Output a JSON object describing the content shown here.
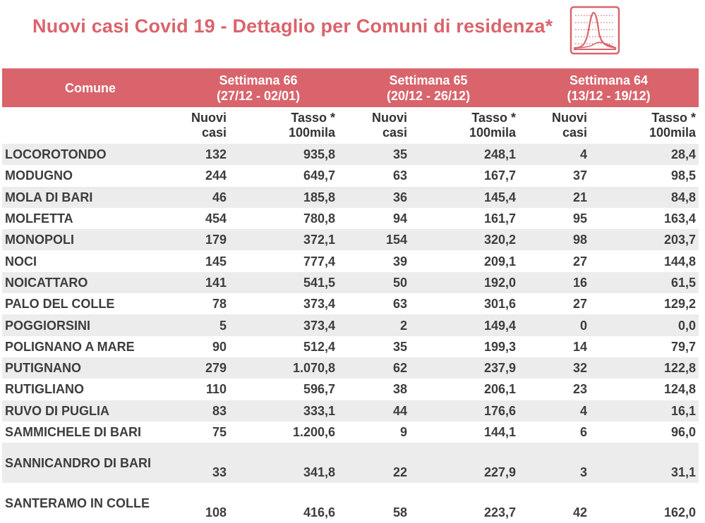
{
  "title": "Nuovi casi Covid 19 - Dettaglio per Comuni di residenza*",
  "logo_icon": "epidemic-curve-icon",
  "colors": {
    "accent": "#d9646c",
    "row_shade": "#ececec"
  },
  "table": {
    "comune_header": "Comune",
    "weeks": [
      {
        "label": "Settimana 66",
        "range": "(27/12 - 02/01)"
      },
      {
        "label": "Settimana 65",
        "range": "(20/12 - 26/12)"
      },
      {
        "label": "Settimana 64",
        "range": "(13/12 - 19/12)"
      }
    ],
    "sub_headers": {
      "nuovi_1": "Nuovi",
      "nuovi_2": "casi",
      "tasso_1": "Tasso *",
      "tasso_2": "100mila"
    },
    "rows": [
      {
        "comune": "LOCOROTONDO",
        "w66_casi": "132",
        "w66_tasso": "935,8",
        "w65_casi": "35",
        "w65_tasso": "248,1",
        "w64_casi": "4",
        "w64_tasso": "28,4"
      },
      {
        "comune": "MODUGNO",
        "w66_casi": "244",
        "w66_tasso": "649,7",
        "w65_casi": "63",
        "w65_tasso": "167,7",
        "w64_casi": "37",
        "w64_tasso": "98,5"
      },
      {
        "comune": "MOLA DI BARI",
        "w66_casi": "46",
        "w66_tasso": "185,8",
        "w65_casi": "36",
        "w65_tasso": "145,4",
        "w64_casi": "21",
        "w64_tasso": "84,8"
      },
      {
        "comune": "MOLFETTA",
        "w66_casi": "454",
        "w66_tasso": "780,8",
        "w65_casi": "94",
        "w65_tasso": "161,7",
        "w64_casi": "95",
        "w64_tasso": "163,4"
      },
      {
        "comune": "MONOPOLI",
        "w66_casi": "179",
        "w66_tasso": "372,1",
        "w65_casi": "154",
        "w65_tasso": "320,2",
        "w64_casi": "98",
        "w64_tasso": "203,7"
      },
      {
        "comune": "NOCI",
        "w66_casi": "145",
        "w66_tasso": "777,4",
        "w65_casi": "39",
        "w65_tasso": "209,1",
        "w64_casi": "27",
        "w64_tasso": "144,8"
      },
      {
        "comune": "NOICATTARO",
        "w66_casi": "141",
        "w66_tasso": "541,5",
        "w65_casi": "50",
        "w65_tasso": "192,0",
        "w64_casi": "16",
        "w64_tasso": "61,5"
      },
      {
        "comune": "PALO DEL COLLE",
        "w66_casi": "78",
        "w66_tasso": "373,4",
        "w65_casi": "63",
        "w65_tasso": "301,6",
        "w64_casi": "27",
        "w64_tasso": "129,2"
      },
      {
        "comune": "POGGIORSINI",
        "w66_casi": "5",
        "w66_tasso": "373,4",
        "w65_casi": "2",
        "w65_tasso": "149,4",
        "w64_casi": "0",
        "w64_tasso": "0,0"
      },
      {
        "comune": "POLIGNANO A MARE",
        "w66_casi": "90",
        "w66_tasso": "512,4",
        "w65_casi": "35",
        "w65_tasso": "199,3",
        "w64_casi": "14",
        "w64_tasso": "79,7"
      },
      {
        "comune": "PUTIGNANO",
        "w66_casi": "279",
        "w66_tasso": "1.070,8",
        "w65_casi": "62",
        "w65_tasso": "237,9",
        "w64_casi": "32",
        "w64_tasso": "122,8"
      },
      {
        "comune": "RUTIGLIANO",
        "w66_casi": "110",
        "w66_tasso": "596,7",
        "w65_casi": "38",
        "w65_tasso": "206,1",
        "w64_casi": "23",
        "w64_tasso": "124,8"
      },
      {
        "comune": "RUVO DI PUGLIA",
        "w66_casi": "83",
        "w66_tasso": "333,1",
        "w65_casi": "44",
        "w65_tasso": "176,6",
        "w64_casi": "4",
        "w64_tasso": "16,1"
      },
      {
        "comune": "SAMMICHELE DI BARI",
        "w66_casi": "75",
        "w66_tasso": "1.200,6",
        "w65_casi": "9",
        "w65_tasso": "144,1",
        "w64_casi": "6",
        "w64_tasso": "96,0"
      },
      {
        "comune": "SANNICANDRO DI BARI",
        "w66_casi": "33",
        "w66_tasso": "341,8",
        "w65_casi": "22",
        "w65_tasso": "227,9",
        "w64_casi": "3",
        "w64_tasso": "31,1"
      },
      {
        "comune": "SANTERAMO IN COLLE",
        "w66_casi": "108",
        "w66_tasso": "416,6",
        "w65_casi": "58",
        "w65_tasso": "223,7",
        "w64_casi": "42",
        "w64_tasso": "162,0"
      }
    ]
  }
}
